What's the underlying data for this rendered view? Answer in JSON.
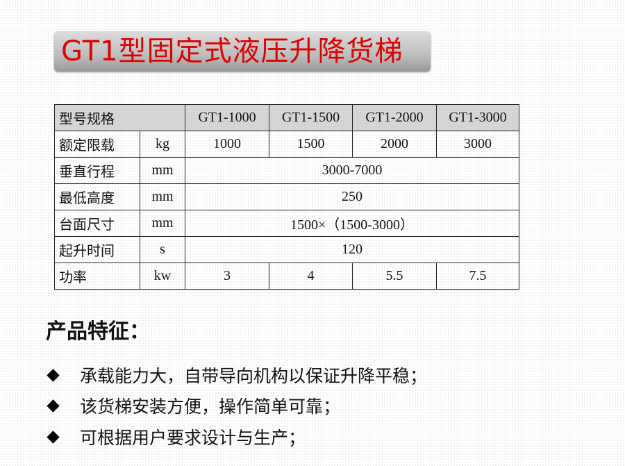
{
  "title": "GT1型固定式液压升降货梯",
  "table": {
    "header": {
      "label": "型号规格",
      "models": [
        "GT1-1000",
        "GT1-1500",
        "GT1-2000",
        "GT1-3000"
      ]
    },
    "rows": [
      {
        "label": "额定限载",
        "unit": "kg",
        "values": [
          "1000",
          "1500",
          "2000",
          "3000"
        ]
      },
      {
        "label": "垂直行程",
        "unit": "mm",
        "span": "3000-7000"
      },
      {
        "label": "最低高度",
        "unit": "mm",
        "span": "250"
      },
      {
        "label": "台面尺寸",
        "unit": "mm",
        "span": "1500×（1500-3000）"
      },
      {
        "label": "起升时间",
        "unit": "s",
        "span": "120"
      },
      {
        "label": "功率",
        "unit": "kw",
        "values": [
          "3",
          "4",
          "5.5",
          "7.5"
        ]
      }
    ]
  },
  "features": {
    "heading": "产品特征：",
    "items": [
      "承载能力大，自带导向机构以保证升降平稳；",
      "该货梯安装方便，操作简单可靠；",
      "可根据用户要求设计与生产；"
    ]
  },
  "colors": {
    "title": "#e00000",
    "title_bar": "#bdbdbd"
  }
}
